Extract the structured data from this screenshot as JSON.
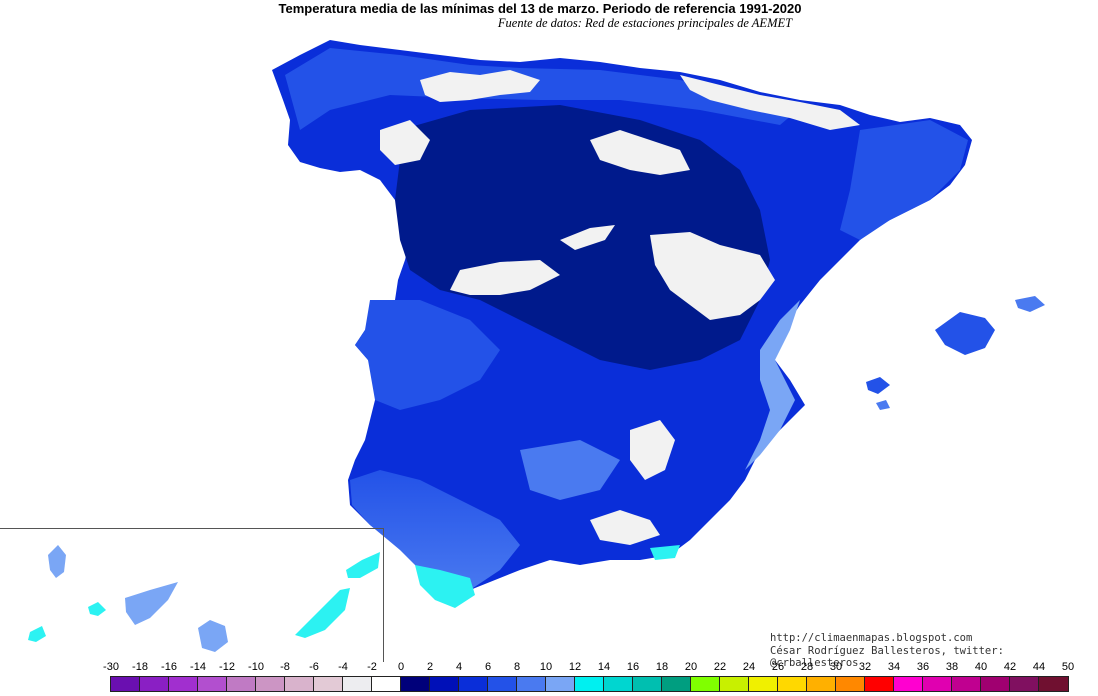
{
  "title": "Temperatura media de las mínimas del 13 de marzo. Periodo de referencia 1991-2020",
  "subtitle": "Fuente de datos: Red de estaciones principales de AEMET",
  "credits": {
    "url": "http://climaenmapas.blogspot.com",
    "author": "César Rodríguez Ballesteros, twitter: @crballesteros"
  },
  "legend": {
    "labels": [
      "-30",
      "-18",
      "-16",
      "-14",
      "-12",
      "-10",
      "-8",
      "-6",
      "-4",
      "-2",
      "0",
      "2",
      "4",
      "6",
      "8",
      "10",
      "12",
      "14",
      "16",
      "18",
      "20",
      "22",
      "24",
      "26",
      "28",
      "30",
      "32",
      "34",
      "36",
      "38",
      "40",
      "42",
      "44",
      "50"
    ],
    "colors": [
      "#6a0fb0",
      "#8a1fc4",
      "#a12fcf",
      "#b24fcf",
      "#c07ac4",
      "#cc95c4",
      "#d9b3cc",
      "#e3cad6",
      "#ededf0",
      "#ffffff",
      "#00007a",
      "#0010b8",
      "#0a2ed9",
      "#2352e8",
      "#4a7af0",
      "#7aa6f5",
      "#00f0f0",
      "#00d6d0",
      "#00bfb0",
      "#009e80",
      "#80ff00",
      "#c8f000",
      "#f0f000",
      "#ffd800",
      "#ffb000",
      "#ff8800",
      "#ff0000",
      "#ff00d0",
      "#e000b0",
      "#c00090",
      "#a00070",
      "#801060",
      "#701030"
    ]
  },
  "map_colors": {
    "dark": "#001a8c",
    "mid": "#0a2ed9",
    "light": "#2352e8",
    "lighter": "#4a7af0",
    "pale": "#7aa6f5",
    "cyan": "#2cf2f2",
    "snow": "#f2f2f2"
  }
}
